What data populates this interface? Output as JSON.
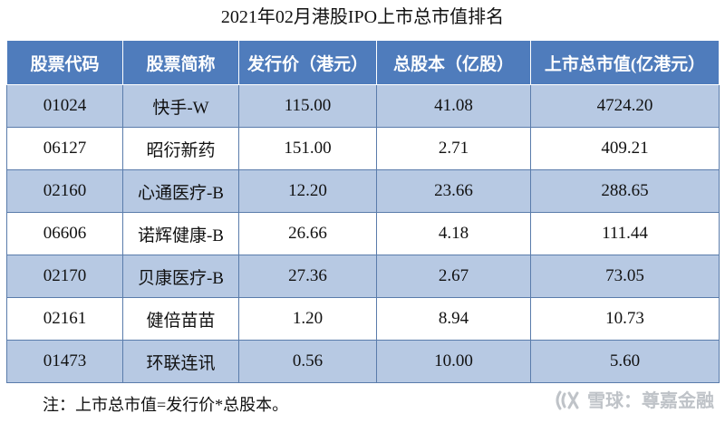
{
  "title": "2021年02月港股IPO上市总市值排名",
  "table": {
    "headers": [
      "股票代码",
      "股票简称",
      "发行价（港元）",
      "总股本（亿股）",
      "上市总市值(亿港元）"
    ],
    "rows": [
      [
        "01024",
        "快手-W",
        "115.00",
        "41.08",
        "4724.20"
      ],
      [
        "06127",
        "昭衍新药",
        "151.00",
        "2.71",
        "409.21"
      ],
      [
        "02160",
        "心通医疗-B",
        "12.20",
        "23.66",
        "288.65"
      ],
      [
        "06606",
        "诺辉健康-B",
        "26.66",
        "4.18",
        "111.44"
      ],
      [
        "02170",
        "贝康医疗-B",
        "27.36",
        "2.67",
        "73.05"
      ],
      [
        "02161",
        "健倍苗苗",
        "1.20",
        "8.94",
        "10.73"
      ],
      [
        "01473",
        "环联连讯",
        "0.56",
        "10.00",
        "5.60"
      ]
    ]
  },
  "note": "注：上市总市值=发行价*总股本。",
  "watermark": {
    "text": "雪球：尊嘉金融",
    "icon": "snowball-logo-icon"
  },
  "colors": {
    "header_bg": "#4f7cbc",
    "band_odd": "#b7c9e3",
    "band_even": "#ffffff",
    "border": "#5a7cab"
  }
}
